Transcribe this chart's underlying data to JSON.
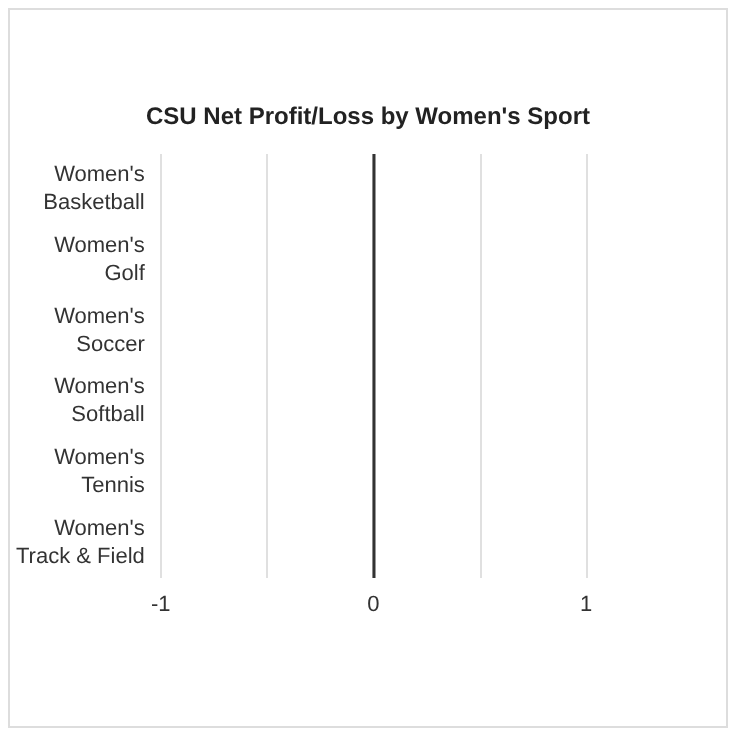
{
  "chart_data": {
    "type": "bar",
    "orientation": "horizontal",
    "title": "CSU Net Profit/Loss by Women's Sport",
    "categories": [
      "Women's\nBasketball",
      "Women's\nGolf",
      "Women's\nSoccer",
      "Women's\nSoftball",
      "Women's\nTennis",
      "Women's\nTrack & Field"
    ],
    "values": [
      0,
      0,
      0,
      0,
      0,
      0
    ],
    "xlim": [
      -1,
      1
    ],
    "xticks": [
      -1,
      {
        "value": -0.5,
        "label": null
      },
      0,
      {
        "value": 0.5,
        "label": null
      },
      1
    ],
    "grid": "x",
    "ref_lines": [
      {
        "axis": "x",
        "value": 0,
        "color": "#333333"
      }
    ]
  }
}
